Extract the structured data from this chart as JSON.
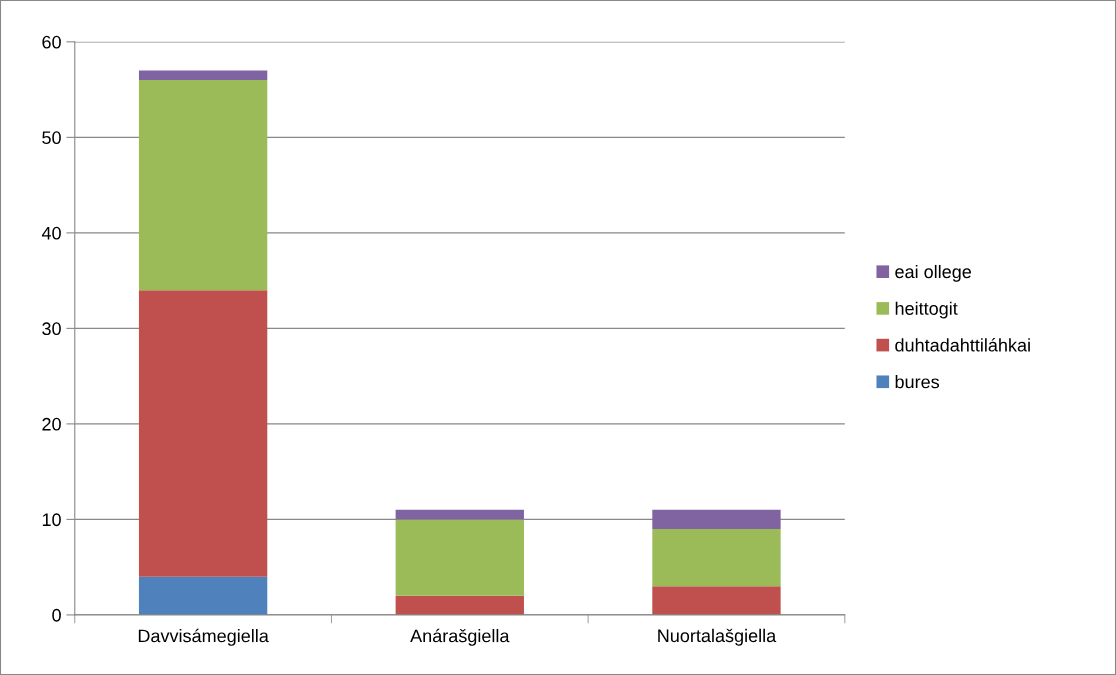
{
  "chart_data": {
    "type": "bar",
    "stacked": true,
    "categories": [
      "Davvisámegiella",
      "Anárašgiella",
      "Nuortalašgiella"
    ],
    "series": [
      {
        "name": "bures",
        "color": "#4f81bd",
        "values": [
          4,
          0,
          0
        ]
      },
      {
        "name": "duhtadahttiláhkai",
        "color": "#c0504d",
        "values": [
          30,
          2,
          3
        ]
      },
      {
        "name": "heittogit",
        "color": "#9bbb59",
        "values": [
          22,
          8,
          6
        ]
      },
      {
        "name": "eai ollege",
        "color": "#8064a2",
        "values": [
          1,
          1,
          2
        ]
      }
    ],
    "ylim": [
      0,
      60
    ],
    "yticks": [
      0,
      10,
      20,
      30,
      40,
      50,
      60
    ],
    "grid": "y",
    "legend": "right"
  }
}
